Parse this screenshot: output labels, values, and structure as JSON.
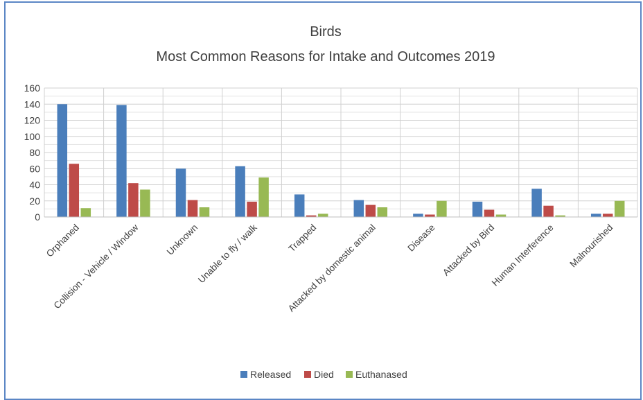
{
  "chart_data": {
    "type": "bar",
    "title": "Birds",
    "subtitle": "Most Common Reasons for Intake and Outcomes 2019",
    "xlabel": "",
    "ylabel": "",
    "ylim": [
      0,
      160
    ],
    "yticks": [
      "0",
      "20",
      "40",
      "60",
      "80",
      "100",
      "120",
      "140",
      "160"
    ],
    "grid": true,
    "legend_position": "bottom",
    "categories": [
      "Orphaned",
      "Collision - Vehicle / Window",
      "Unknown",
      "Unable to fly / walk",
      "Trapped",
      "Attacked  by domestic animal",
      "Disease",
      "Attacked  by Bird",
      "Human Interference",
      "Malnourished"
    ],
    "series": [
      {
        "name": "Released",
        "color": "#4a7ebb",
        "values": [
          140,
          139,
          60,
          63,
          28,
          21,
          4,
          19,
          35,
          4
        ]
      },
      {
        "name": "Died",
        "color": "#be4b48",
        "values": [
          66,
          42,
          21,
          19,
          2,
          15,
          3,
          9,
          14,
          4
        ]
      },
      {
        "name": "Euthanased",
        "color": "#98b954",
        "values": [
          11,
          34,
          12,
          49,
          4,
          12,
          20,
          3,
          2,
          20
        ]
      }
    ]
  }
}
